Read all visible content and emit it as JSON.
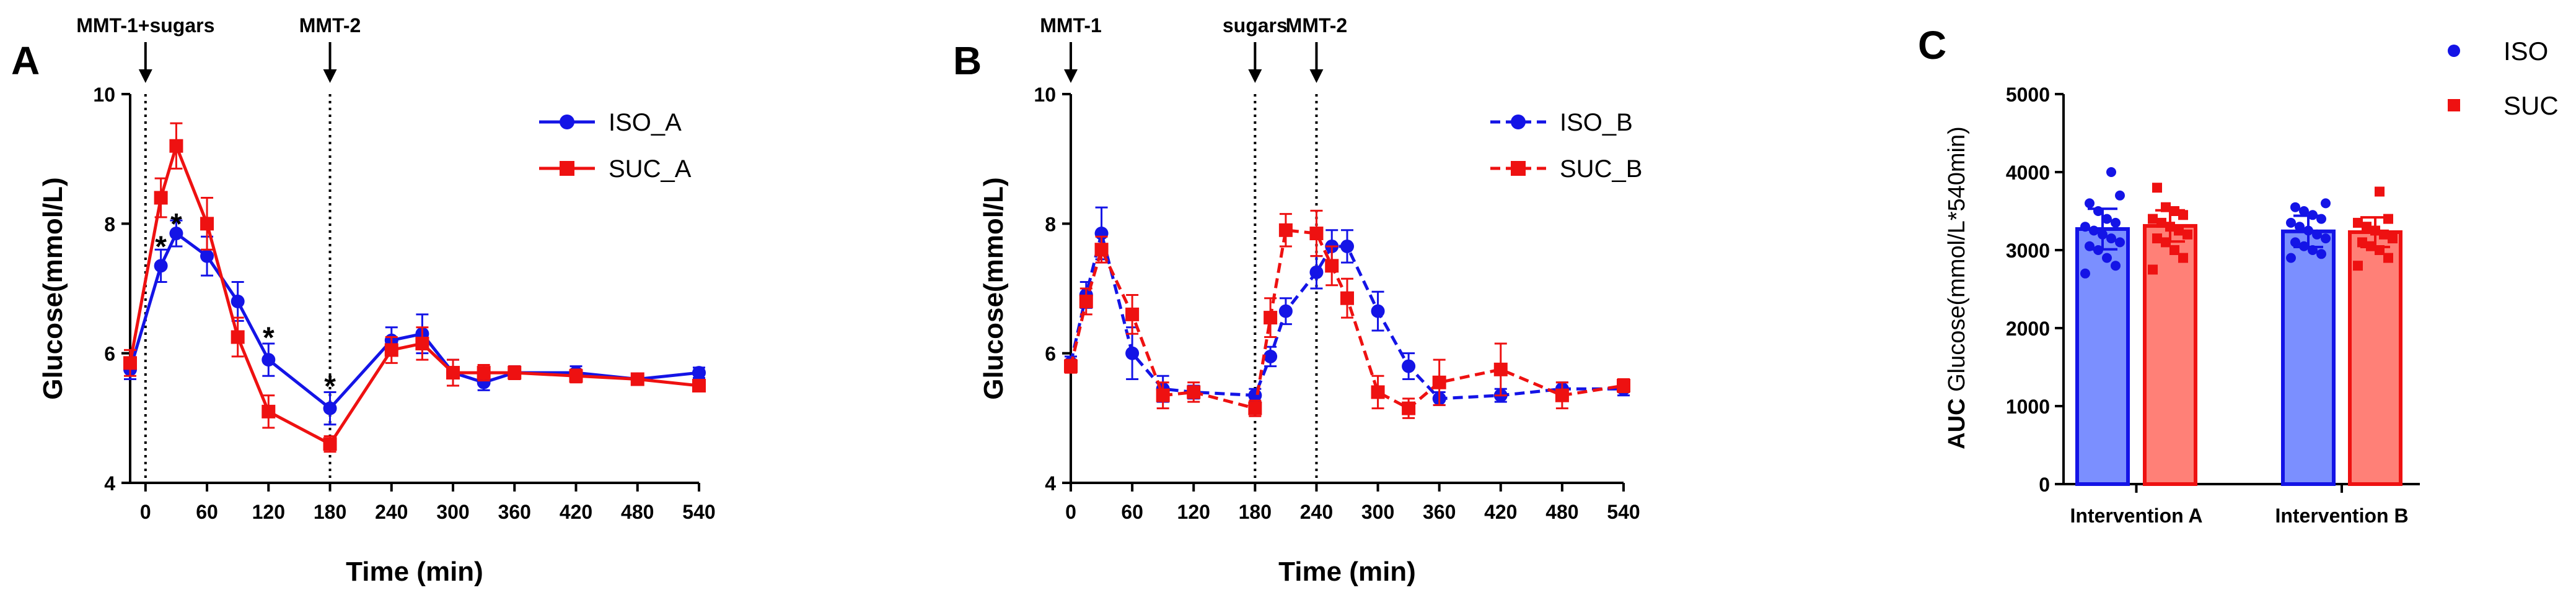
{
  "chart_data": [
    {
      "panel_label": "A",
      "type": "line",
      "xlabel": "Time (min)",
      "ylabel": "Glucose(mmol/L)",
      "xlim": [
        -15,
        540
      ],
      "ylim": [
        4,
        10
      ],
      "xticks": [
        0,
        60,
        120,
        180,
        240,
        300,
        360,
        420,
        480,
        540
      ],
      "yticks": [
        4,
        6,
        8,
        10
      ],
      "events": [
        {
          "label": "MMT-1+sugars",
          "x": 0
        },
        {
          "label": "MMT-2",
          "x": 180
        }
      ],
      "legend_position": "top-right",
      "series": [
        {
          "name": "ISO_A",
          "color": "#1414e6",
          "marker": "circle",
          "dash": "solid",
          "x": [
            -15,
            15,
            30,
            60,
            90,
            120,
            180,
            240,
            270,
            300,
            330,
            360,
            420,
            480,
            540
          ],
          "values": [
            5.75,
            7.35,
            7.85,
            7.5,
            6.8,
            5.9,
            5.15,
            6.2,
            6.3,
            5.7,
            5.55,
            5.7,
            5.7,
            5.6,
            5.7
          ],
          "errors": [
            0.15,
            0.25,
            0.2,
            0.3,
            0.3,
            0.25,
            0.25,
            0.2,
            0.3,
            0.2,
            0.12,
            0.1,
            0.1,
            0.08,
            0.08
          ]
        },
        {
          "name": "SUC_A",
          "color": "#ee1111",
          "marker": "square",
          "dash": "solid",
          "x": [
            -15,
            15,
            30,
            60,
            90,
            120,
            180,
            240,
            270,
            300,
            330,
            360,
            420,
            480,
            540
          ],
          "values": [
            5.85,
            8.4,
            9.2,
            8.0,
            6.25,
            5.1,
            4.6,
            6.05,
            6.15,
            5.7,
            5.7,
            5.7,
            5.65,
            5.6,
            5.5
          ],
          "errors": [
            0.2,
            0.3,
            0.35,
            0.4,
            0.3,
            0.25,
            0.12,
            0.2,
            0.25,
            0.2,
            0.12,
            0.1,
            0.1,
            0.08,
            0.08
          ]
        }
      ],
      "annotations": [
        {
          "text": "*",
          "x": 15,
          "y": 7.7
        },
        {
          "text": "*",
          "x": 30,
          "y": 8.05
        },
        {
          "text": "*",
          "x": 120,
          "y": 6.3
        },
        {
          "text": "*",
          "x": 180,
          "y": 5.55
        }
      ]
    },
    {
      "panel_label": "B",
      "type": "line",
      "xlabel": "Time (min)",
      "ylabel": "Glucose(mmol/L)",
      "xlim": [
        0,
        540
      ],
      "ylim": [
        4,
        10
      ],
      "xticks": [
        0,
        60,
        120,
        180,
        240,
        300,
        360,
        420,
        480,
        540
      ],
      "yticks": [
        4,
        6,
        8,
        10
      ],
      "events": [
        {
          "label": "MMT-1",
          "x": 0
        },
        {
          "label": "sugars",
          "x": 180
        },
        {
          "label": "MMT-2",
          "x": 240
        }
      ],
      "legend_position": "top-right",
      "series": [
        {
          "name": "ISO_B",
          "color": "#1414e6",
          "marker": "circle",
          "dash": "dashed",
          "x": [
            0,
            15,
            30,
            60,
            90,
            120,
            180,
            195,
            210,
            240,
            255,
            270,
            300,
            330,
            360,
            420,
            480,
            540
          ],
          "values": [
            5.85,
            6.9,
            7.85,
            6.0,
            5.45,
            5.4,
            5.35,
            5.95,
            6.65,
            7.25,
            7.65,
            7.65,
            6.65,
            5.8,
            5.3,
            5.35,
            5.45,
            5.45
          ],
          "errors": [
            0.1,
            0.2,
            0.4,
            0.4,
            0.2,
            0.1,
            0.1,
            0.15,
            0.2,
            0.25,
            0.25,
            0.25,
            0.3,
            0.2,
            0.1,
            0.1,
            0.1,
            0.1
          ]
        },
        {
          "name": "SUC_B",
          "color": "#ee1111",
          "marker": "square",
          "dash": "dashed",
          "x": [
            0,
            15,
            30,
            60,
            90,
            120,
            180,
            195,
            210,
            240,
            255,
            270,
            300,
            330,
            360,
            420,
            480,
            540
          ],
          "values": [
            5.8,
            6.8,
            7.6,
            6.6,
            5.35,
            5.4,
            5.15,
            6.55,
            7.9,
            7.85,
            7.35,
            6.85,
            5.4,
            5.15,
            5.55,
            5.75,
            5.35,
            5.5
          ],
          "errors": [
            0.1,
            0.2,
            0.2,
            0.3,
            0.2,
            0.15,
            0.12,
            0.3,
            0.25,
            0.35,
            0.3,
            0.3,
            0.25,
            0.15,
            0.35,
            0.4,
            0.2,
            0.1
          ]
        }
      ]
    },
    {
      "panel_label": "C",
      "type": "bar",
      "categories": [
        "Intervention A",
        "Intervention B"
      ],
      "ylabel_prefix": "AUC",
      "ylabel": "Glucose(mmol/L*540min)",
      "ylim": [
        0,
        5000
      ],
      "yticks": [
        0,
        1000,
        2000,
        3000,
        4000,
        5000
      ],
      "legend_position": "top-right",
      "series": [
        {
          "name": "ISO",
          "color": "#1414e6",
          "fill": "#7b8fff",
          "marker": "circle",
          "values": [
            3270,
            3240
          ],
          "errors": [
            260,
            200
          ],
          "points": [
            [
              2700,
              2800,
              2900,
              3000,
              3050,
              3100,
              3150,
              3200,
              3250,
              3300,
              3350,
              3400,
              3500,
              3600,
              3700,
              4000
            ],
            [
              2900,
              2950,
              3000,
              3050,
              3100,
              3150,
              3200,
              3250,
              3300,
              3350,
              3400,
              3450,
              3500,
              3550,
              3600
            ]
          ]
        },
        {
          "name": "SUC",
          "color": "#ee1111",
          "fill": "#ff8077",
          "marker": "square",
          "values": [
            3310,
            3230
          ],
          "errors": [
            200,
            190
          ],
          "points": [
            [
              2750,
              2900,
              3000,
              3100,
              3150,
              3200,
              3250,
              3300,
              3350,
              3400,
              3450,
              3500,
              3550,
              3800
            ],
            [
              2800,
              2900,
              3000,
              3050,
              3100,
              3150,
              3200,
              3250,
              3300,
              3350,
              3400,
              3750
            ]
          ]
        }
      ]
    }
  ]
}
